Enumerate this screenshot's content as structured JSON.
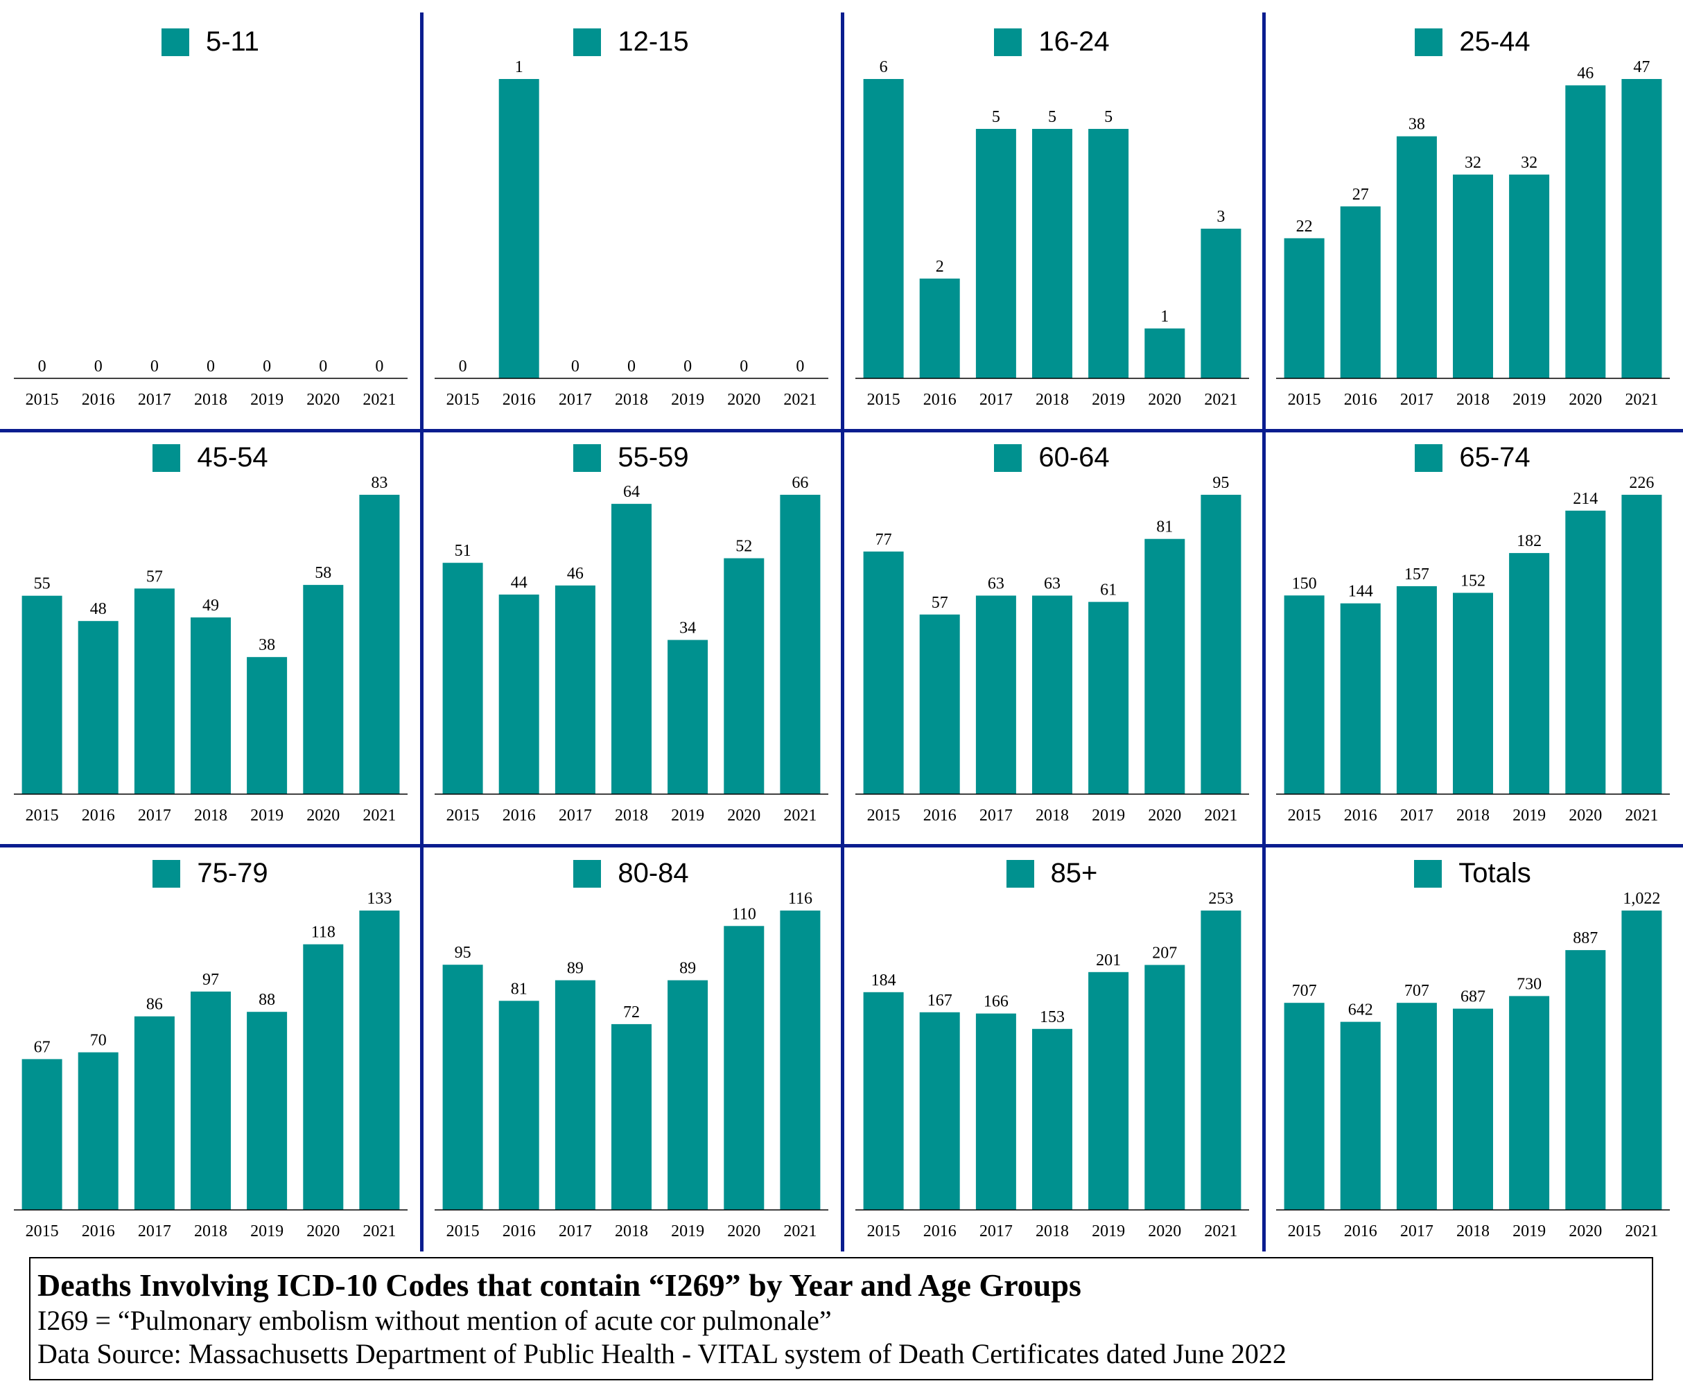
{
  "colors": {
    "bar": "#00918f",
    "divider": "#0a1d8f"
  },
  "caption": {
    "title": "Deaths Involving ICD-10 Codes that contain “I269” by Year and Age Groups",
    "definition": "I269 = “Pulmonary embolism without mention of acute cor pulmonale”",
    "source": "Data Source:  Massachusetts Department of Public Health - VITAL system of Death Certificates dated June 2022"
  },
  "chart_data": [
    {
      "type": "bar",
      "legend": "5-11",
      "categories": [
        "2015",
        "2016",
        "2017",
        "2018",
        "2019",
        "2020",
        "2021"
      ],
      "values": [
        0,
        0,
        0,
        0,
        0,
        0,
        0
      ],
      "labels": [
        "0",
        "0",
        "0",
        "0",
        "0",
        "0",
        "0"
      ]
    },
    {
      "type": "bar",
      "legend": "12-15",
      "categories": [
        "2015",
        "2016",
        "2017",
        "2018",
        "2019",
        "2020",
        "2021"
      ],
      "values": [
        0,
        1,
        0,
        0,
        0,
        0,
        0
      ],
      "labels": [
        "0",
        "1",
        "0",
        "0",
        "0",
        "0",
        "0"
      ]
    },
    {
      "type": "bar",
      "legend": "16-24",
      "categories": [
        "2015",
        "2016",
        "2017",
        "2018",
        "2019",
        "2020",
        "2021"
      ],
      "values": [
        6,
        2,
        5,
        5,
        5,
        1,
        3
      ],
      "labels": [
        "6",
        "2",
        "5",
        "5",
        "5",
        "1",
        "3"
      ]
    },
    {
      "type": "bar",
      "legend": "25-44",
      "categories": [
        "2015",
        "2016",
        "2017",
        "2018",
        "2019",
        "2020",
        "2021"
      ],
      "values": [
        22,
        27,
        38,
        32,
        32,
        46,
        47
      ],
      "labels": [
        "22",
        "27",
        "38",
        "32",
        "32",
        "46",
        "47"
      ]
    },
    {
      "type": "bar",
      "legend": "45-54",
      "categories": [
        "2015",
        "2016",
        "2017",
        "2018",
        "2019",
        "2020",
        "2021"
      ],
      "values": [
        55,
        48,
        57,
        49,
        38,
        58,
        83
      ],
      "labels": [
        "55",
        "48",
        "57",
        "49",
        "38",
        "58",
        "83"
      ]
    },
    {
      "type": "bar",
      "legend": "55-59",
      "categories": [
        "2015",
        "2016",
        "2017",
        "2018",
        "2019",
        "2020",
        "2021"
      ],
      "values": [
        51,
        44,
        46,
        64,
        34,
        52,
        66
      ],
      "labels": [
        "51",
        "44",
        "46",
        "64",
        "34",
        "52",
        "66"
      ]
    },
    {
      "type": "bar",
      "legend": "60-64",
      "categories": [
        "2015",
        "2016",
        "2017",
        "2018",
        "2019",
        "2020",
        "2021"
      ],
      "values": [
        77,
        57,
        63,
        63,
        61,
        81,
        95
      ],
      "labels": [
        "77",
        "57",
        "63",
        "63",
        "61",
        "81",
        "95"
      ]
    },
    {
      "type": "bar",
      "legend": "65-74",
      "categories": [
        "2015",
        "2016",
        "2017",
        "2018",
        "2019",
        "2020",
        "2021"
      ],
      "values": [
        150,
        144,
        157,
        152,
        182,
        214,
        226
      ],
      "labels": [
        "150",
        "144",
        "157",
        "152",
        "182",
        "214",
        "226"
      ]
    },
    {
      "type": "bar",
      "legend": "75-79",
      "categories": [
        "2015",
        "2016",
        "2017",
        "2018",
        "2019",
        "2020",
        "2021"
      ],
      "values": [
        67,
        70,
        86,
        97,
        88,
        118,
        133
      ],
      "labels": [
        "67",
        "70",
        "86",
        "97",
        "88",
        "118",
        "133"
      ]
    },
    {
      "type": "bar",
      "legend": "80-84",
      "categories": [
        "2015",
        "2016",
        "2017",
        "2018",
        "2019",
        "2020",
        "2021"
      ],
      "values": [
        95,
        81,
        89,
        72,
        89,
        110,
        116
      ],
      "labels": [
        "95",
        "81",
        "89",
        "72",
        "89",
        "110",
        "116"
      ]
    },
    {
      "type": "bar",
      "legend": "85+",
      "categories": [
        "2015",
        "2016",
        "2017",
        "2018",
        "2019",
        "2020",
        "2021"
      ],
      "values": [
        184,
        167,
        166,
        153,
        201,
        207,
        253
      ],
      "labels": [
        "184",
        "167",
        "166",
        "153",
        "201",
        "207",
        "253"
      ]
    },
    {
      "type": "bar",
      "legend": "Totals",
      "categories": [
        "2015",
        "2016",
        "2017",
        "2018",
        "2019",
        "2020",
        "2021"
      ],
      "values": [
        707,
        642,
        707,
        687,
        730,
        887,
        1022
      ],
      "labels": [
        "707",
        "642",
        "707",
        "687",
        "730",
        "887",
        "1,022"
      ]
    }
  ]
}
